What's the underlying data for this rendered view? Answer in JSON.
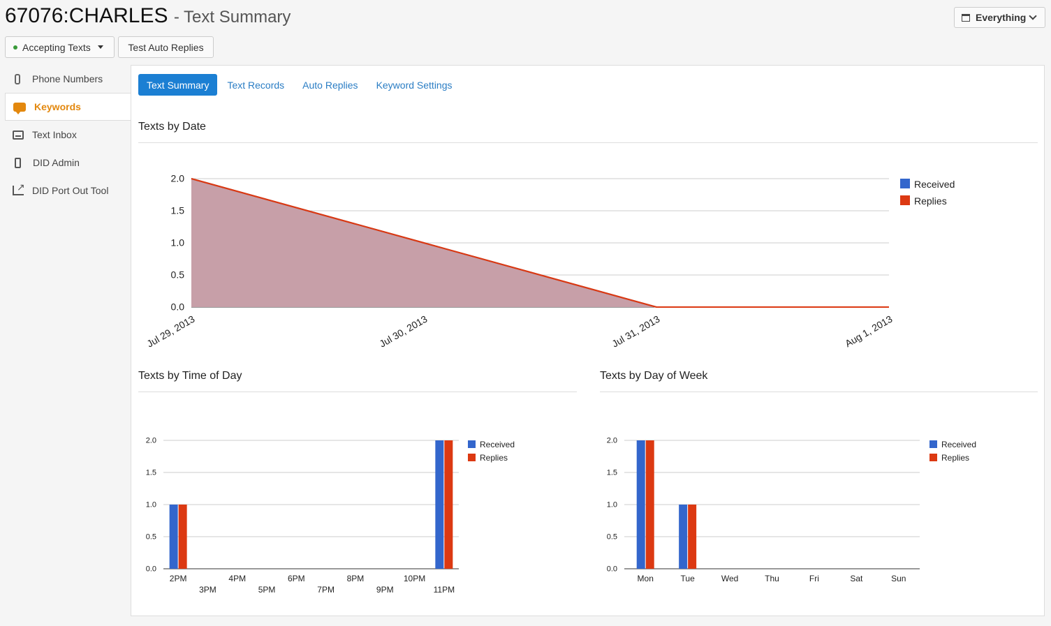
{
  "header": {
    "title": "67076:CHARLES",
    "subtitle": "- Text Summary",
    "status_button": "Accepting Texts",
    "test_button": "Test Auto Replies",
    "range_selector": "Everything"
  },
  "sidebar": {
    "items": [
      {
        "label": "Phone Numbers",
        "icon": "phone-icon"
      },
      {
        "label": "Keywords",
        "icon": "chat-bubble-icon",
        "active": true
      },
      {
        "label": "Text Inbox",
        "icon": "inbox-icon"
      },
      {
        "label": "DID Admin",
        "icon": "mobile-icon"
      },
      {
        "label": "DID Port Out Tool",
        "icon": "share-icon"
      }
    ]
  },
  "tabs": [
    "Text Summary",
    "Text Records",
    "Auto Replies",
    "Keyword Settings"
  ],
  "sections": {
    "by_date": "Texts by Date",
    "by_time": "Texts by Time of Day",
    "by_weekday": "Texts by Day of Week"
  },
  "colors": {
    "received": "#3366cc",
    "replies": "#dc3912",
    "accent": "#e3880e",
    "tab_active": "#1b7fd3"
  },
  "chart_data": [
    {
      "type": "area",
      "title": "Texts by Date",
      "x": [
        "Jul 29, 2013",
        "Jul 30, 2013",
        "Jul 31, 2013",
        "Aug 1, 2013"
      ],
      "series": [
        {
          "name": "Received",
          "values": [
            2,
            1,
            0,
            0
          ]
        },
        {
          "name": "Replies",
          "values": [
            2,
            1,
            0,
            0
          ]
        }
      ],
      "yticks": [
        "0.0",
        "0.5",
        "1.0",
        "1.5",
        "2.0"
      ],
      "ylim": [
        0,
        2
      ],
      "legend": "right",
      "grid": true
    },
    {
      "type": "bar",
      "title": "Texts by Time of Day",
      "categories": [
        "2PM",
        "3PM",
        "4PM",
        "5PM",
        "6PM",
        "7PM",
        "8PM",
        "9PM",
        "10PM",
        "11PM"
      ],
      "series": [
        {
          "name": "Received",
          "values": [
            1,
            0,
            0,
            0,
            0,
            0,
            0,
            0,
            0,
            2
          ]
        },
        {
          "name": "Replies",
          "values": [
            1,
            0,
            0,
            0,
            0,
            0,
            0,
            0,
            0,
            2
          ]
        }
      ],
      "yticks": [
        "0.0",
        "0.5",
        "1.0",
        "1.5",
        "2.0"
      ],
      "ylim": [
        0,
        2
      ],
      "legend": "right",
      "grid": true
    },
    {
      "type": "bar",
      "title": "Texts by Day of Week",
      "categories": [
        "Mon",
        "Tue",
        "Wed",
        "Thu",
        "Fri",
        "Sat",
        "Sun"
      ],
      "series": [
        {
          "name": "Received",
          "values": [
            2,
            1,
            0,
            0,
            0,
            0,
            0
          ]
        },
        {
          "name": "Replies",
          "values": [
            2,
            1,
            0,
            0,
            0,
            0,
            0
          ]
        }
      ],
      "yticks": [
        "0.0",
        "0.5",
        "1.0",
        "1.5",
        "2.0"
      ],
      "ylim": [
        0,
        2
      ],
      "legend": "right",
      "grid": true
    }
  ]
}
